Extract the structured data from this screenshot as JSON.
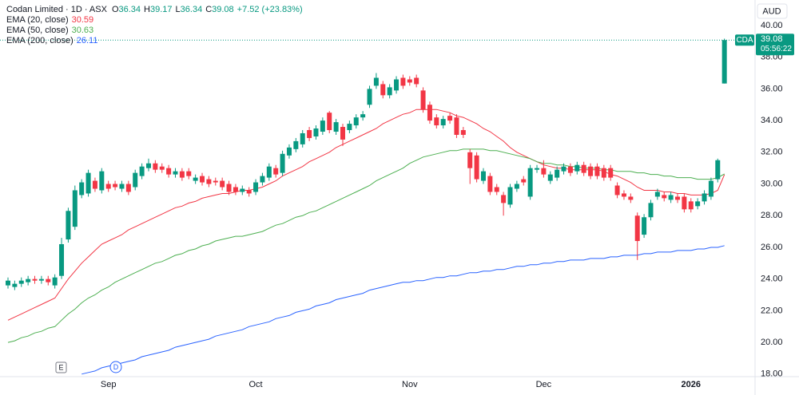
{
  "chart_data": {
    "type": "candlestick",
    "title": "Codan Limited · 1D · ASX",
    "symbol": "CDA",
    "currency": "AUD",
    "countdown": "05:56:22",
    "ohlc_labels": [
      "O",
      "H",
      "L",
      "C"
    ],
    "change": "+7.52 (+23.83%)",
    "events": [
      "E",
      "D"
    ],
    "up_color": "#089981",
    "down_color": "#f23645",
    "ylim": [
      17.84,
      41.61
    ],
    "yticks": [
      {
        "value": 18,
        "label": "18.00"
      },
      {
        "value": 20,
        "label": "20.00"
      },
      {
        "value": 22,
        "label": "22.00"
      },
      {
        "value": 24,
        "label": "24.00"
      },
      {
        "value": 26,
        "label": "26.00"
      },
      {
        "value": 28,
        "label": "28.00"
      },
      {
        "value": 30,
        "label": "30.00"
      },
      {
        "value": 32,
        "label": "32.00"
      },
      {
        "value": 34,
        "label": "34.00"
      },
      {
        "value": 36,
        "label": "36.00"
      },
      {
        "value": 38,
        "label": "38.00"
      },
      {
        "value": 40,
        "label": "40.00"
      }
    ],
    "grid": false,
    "categories": [
      null,
      null,
      null,
      null,
      null,
      null,
      null,
      null,
      null,
      null,
      null,
      null,
      null,
      null,
      null,
      "Sep",
      null,
      null,
      null,
      null,
      null,
      null,
      null,
      null,
      null,
      null,
      null,
      null,
      null,
      null,
      null,
      null,
      null,
      null,
      null,
      null,
      null,
      "Oct",
      null,
      null,
      null,
      null,
      null,
      null,
      null,
      null,
      null,
      null,
      null,
      null,
      null,
      null,
      null,
      null,
      null,
      null,
      null,
      null,
      null,
      null,
      "Nov",
      null,
      null,
      null,
      null,
      null,
      null,
      null,
      null,
      null,
      null,
      null,
      null,
      null,
      null,
      null,
      null,
      null,
      null,
      null,
      "Dec",
      null,
      null,
      null,
      null,
      null,
      null,
      null,
      null,
      null,
      null,
      null,
      null,
      null,
      null,
      null,
      null,
      null,
      null,
      null,
      null,
      null,
      "2026",
      null,
      null,
      null,
      null,
      null
    ],
    "open": [
      23.6,
      23.5,
      23.7,
      23.8,
      24.0,
      23.9,
      24.0,
      23.6,
      24.2,
      26.5,
      27.3,
      29.3,
      29.4,
      30.2,
      29.6,
      30.0,
      30.0,
      29.7,
      30.0,
      29.8,
      30.5,
      31.0,
      31.3,
      31.1,
      31.0,
      30.6,
      30.8,
      30.8,
      30.2,
      30.5,
      30.3,
      30.2,
      30.2,
      30.0,
      29.8,
      29.5,
      29.6,
      29.5,
      30.1,
      30.4,
      31.0,
      30.7,
      31.8,
      32.2,
      32.5,
      33.4,
      33.0,
      33.3,
      34.5,
      33.3,
      33.6,
      33.4,
      33.7,
      34.2,
      35.0,
      36.2,
      36.3,
      35.6,
      35.9,
      36.7,
      36.6,
      36.7,
      35.9,
      35.0,
      34.2,
      33.7,
      34.3,
      34.2,
      33.4,
      32.0,
      31.8,
      30.2,
      30.5,
      29.8,
      29.3,
      28.7,
      29.7,
      30.3,
      29.2,
      30.9,
      31.0,
      30.2,
      30.4,
      30.8,
      31.1,
      30.8,
      31.2,
      31.1,
      31.1,
      31.0,
      31.0,
      29.9,
      29.4,
      29.2,
      28.0,
      26.8,
      27.9,
      29.2,
      29.3,
      29.0,
      29.2,
      29.2,
      28.9,
      28.6,
      28.9,
      29.2,
      30.3,
      36.34
    ],
    "high": [
      24.1,
      23.9,
      24.1,
      24.2,
      24.2,
      24.2,
      24.2,
      24.3,
      26.6,
      28.5,
      29.9,
      30.3,
      30.9,
      30.4,
      31.0,
      30.2,
      30.2,
      30.2,
      30.2,
      30.9,
      31.3,
      31.6,
      31.5,
      31.3,
      31.2,
      31.0,
      31.0,
      31.0,
      30.6,
      30.7,
      30.5,
      30.4,
      30.4,
      30.2,
      30.0,
      29.9,
      29.8,
      30.3,
      30.7,
      31.3,
      31.2,
      32.1,
      32.5,
      32.9,
      33.4,
      33.6,
      33.7,
      34.2,
      34.6,
      34.1,
      33.8,
      34.0,
      34.4,
      34.6,
      36.2,
      37.0,
      36.5,
      36.3,
      36.8,
      36.9,
      36.8,
      36.9,
      36.1,
      35.2,
      34.4,
      34.3,
      34.5,
      34.4,
      33.6,
      32.2,
      32.0,
      31.0,
      30.7,
      30.0,
      29.5,
      30.0,
      30.2,
      30.5,
      31.2,
      31.2,
      31.5,
      30.8,
      31.1,
      31.3,
      31.3,
      31.4,
      31.4,
      31.3,
      31.3,
      31.2,
      31.2,
      30.1,
      29.6,
      29.4,
      28.2,
      28.1,
      29.0,
      29.7,
      29.5,
      29.5,
      29.4,
      29.4,
      29.1,
      29.1,
      29.6,
      30.4,
      31.6,
      39.17
    ],
    "low": [
      23.4,
      23.3,
      23.5,
      23.6,
      23.7,
      23.7,
      23.6,
      23.4,
      24.0,
      26.3,
      27.1,
      29.1,
      29.2,
      29.5,
      29.4,
      29.5,
      29.6,
      29.5,
      29.3,
      29.6,
      30.3,
      30.8,
      30.7,
      30.7,
      30.4,
      30.4,
      30.2,
      30.3,
      30.0,
      29.9,
      29.8,
      29.9,
      29.6,
      29.3,
      29.3,
      29.3,
      29.2,
      29.3,
      29.9,
      30.2,
      30.4,
      30.5,
      31.6,
      32.0,
      32.3,
      32.7,
      32.8,
      33.1,
      33.2,
      33.1,
      32.4,
      33.2,
      33.5,
      34.0,
      34.8,
      36.0,
      35.4,
      35.4,
      35.7,
      36.0,
      36.2,
      36.1,
      34.5,
      33.8,
      33.5,
      33.5,
      33.8,
      32.9,
      32.9,
      30.0,
      30.1,
      30.0,
      29.3,
      29.3,
      28.0,
      28.5,
      29.5,
      29.9,
      29.0,
      30.7,
      30.4,
      30.0,
      30.2,
      30.6,
      30.5,
      30.6,
      30.5,
      30.3,
      30.3,
      30.2,
      30.2,
      29.1,
      29.0,
      28.8,
      25.2,
      26.6,
      27.7,
      29.0,
      28.9,
      28.8,
      28.8,
      28.2,
      28.2,
      28.4,
      28.7,
      29.0,
      30.1,
      36.34
    ],
    "close": [
      23.9,
      23.7,
      23.9,
      24.0,
      23.9,
      24.0,
      23.8,
      24.1,
      26.2,
      28.3,
      29.6,
      30.1,
      30.7,
      29.7,
      30.8,
      29.7,
      29.8,
      30.0,
      29.5,
      30.7,
      31.1,
      31.3,
      30.9,
      30.9,
      30.6,
      30.8,
      30.4,
      30.5,
      30.4,
      30.1,
      30.0,
      30.1,
      29.8,
      29.5,
      29.5,
      29.7,
      29.4,
      30.1,
      30.5,
      31.1,
      30.6,
      31.9,
      32.3,
      32.7,
      33.2,
      32.9,
      33.5,
      34.0,
      33.4,
      33.9,
      32.8,
      33.8,
      34.2,
      34.4,
      36.0,
      36.7,
      35.6,
      36.1,
      36.6,
      36.2,
      36.4,
      36.3,
      34.7,
      34.0,
      33.7,
      34.1,
      34.0,
      33.1,
      33.1,
      31.0,
      30.3,
      30.8,
      29.5,
      29.5,
      28.8,
      29.8,
      30.0,
      30.1,
      31.0,
      31.0,
      30.6,
      30.6,
      30.9,
      31.1,
      30.7,
      31.2,
      30.7,
      30.5,
      30.5,
      30.4,
      30.4,
      29.3,
      29.2,
      29.0,
      26.4,
      27.9,
      28.8,
      29.5,
      29.1,
      29.3,
      29.0,
      28.4,
      28.4,
      28.9,
      29.4,
      30.2,
      31.5,
      39.08
    ],
    "series": [
      {
        "name": "EMA (20, close)",
        "color": "#f23645",
        "values": [
          21.4,
          21.6,
          21.8,
          22.0,
          22.2,
          22.4,
          22.6,
          22.8,
          23.4,
          24.0,
          24.5,
          25.0,
          25.4,
          25.8,
          26.2,
          26.4,
          26.6,
          26.8,
          27.1,
          27.3,
          27.5,
          27.7,
          27.9,
          28.1,
          28.3,
          28.5,
          28.6,
          28.8,
          28.9,
          29.1,
          29.2,
          29.3,
          29.4,
          29.4,
          29.5,
          29.6,
          29.6,
          29.7,
          29.8,
          30.0,
          30.2,
          30.5,
          30.7,
          30.9,
          31.1,
          31.4,
          31.6,
          31.8,
          32.0,
          32.3,
          32.5,
          32.7,
          32.9,
          33.1,
          33.3,
          33.5,
          33.8,
          34.0,
          34.2,
          34.4,
          34.5,
          34.7,
          34.7,
          34.7,
          34.7,
          34.6,
          34.5,
          34.3,
          34.2,
          34.0,
          33.8,
          33.5,
          33.3,
          33.0,
          32.7,
          32.3,
          32.0,
          31.8,
          31.6,
          31.4,
          31.2,
          31.1,
          31.0,
          31.0,
          30.9,
          30.9,
          30.9,
          30.9,
          30.9,
          30.8,
          30.6,
          30.5,
          30.3,
          30.1,
          29.8,
          29.6,
          29.6,
          29.6,
          29.5,
          29.5,
          29.4,
          29.4,
          29.3,
          29.3,
          29.3,
          29.4,
          29.6,
          30.59
        ]
      },
      {
        "name": "EMA (50, close)",
        "color": "#4caf50",
        "values": [
          20.0,
          20.1,
          20.3,
          20.4,
          20.6,
          20.7,
          20.9,
          21.0,
          21.4,
          21.8,
          22.1,
          22.5,
          22.8,
          23.0,
          23.3,
          23.5,
          23.8,
          24.0,
          24.2,
          24.4,
          24.6,
          24.8,
          25.0,
          25.1,
          25.3,
          25.5,
          25.6,
          25.8,
          25.9,
          26.1,
          26.2,
          26.4,
          26.5,
          26.6,
          26.7,
          26.7,
          26.8,
          26.9,
          27.0,
          27.2,
          27.4,
          27.5,
          27.7,
          27.9,
          28.0,
          28.2,
          28.3,
          28.5,
          28.7,
          28.9,
          29.1,
          29.3,
          29.5,
          29.7,
          29.9,
          30.2,
          30.4,
          30.6,
          30.8,
          31.0,
          31.3,
          31.5,
          31.7,
          31.8,
          31.9,
          32.0,
          32.1,
          32.1,
          32.2,
          32.2,
          32.2,
          32.2,
          32.1,
          32.1,
          32.0,
          31.9,
          31.8,
          31.7,
          31.6,
          31.4,
          31.3,
          31.3,
          31.2,
          31.2,
          31.1,
          31.1,
          31.0,
          31.0,
          31.0,
          30.9,
          30.9,
          30.8,
          30.8,
          30.8,
          30.7,
          30.7,
          30.6,
          30.6,
          30.5,
          30.5,
          30.4,
          30.4,
          30.4,
          30.3,
          30.3,
          30.3,
          30.4,
          30.63
        ]
      },
      {
        "name": "EMA (200, close)",
        "color": "#2962ff",
        "values": [
          null,
          null,
          null,
          null,
          null,
          null,
          null,
          null,
          null,
          null,
          null,
          18.0,
          18.1,
          18.2,
          18.4,
          18.5,
          18.6,
          18.7,
          18.8,
          18.9,
          19.1,
          19.2,
          19.3,
          19.4,
          19.5,
          19.7,
          19.8,
          19.9,
          20.0,
          20.1,
          20.2,
          20.4,
          20.5,
          20.6,
          20.7,
          20.8,
          21.0,
          21.1,
          21.2,
          21.3,
          21.5,
          21.6,
          21.7,
          21.9,
          22.0,
          22.1,
          22.3,
          22.4,
          22.5,
          22.7,
          22.8,
          22.9,
          23.0,
          23.1,
          23.3,
          23.4,
          23.5,
          23.6,
          23.7,
          23.8,
          23.8,
          23.9,
          23.9,
          24.0,
          24.1,
          24.1,
          24.2,
          24.2,
          24.3,
          24.4,
          24.4,
          24.5,
          24.5,
          24.6,
          24.6,
          24.7,
          24.8,
          24.8,
          24.9,
          24.9,
          25.0,
          25.0,
          25.1,
          25.1,
          25.2,
          25.2,
          25.2,
          25.3,
          25.3,
          25.3,
          25.4,
          25.4,
          25.5,
          25.5,
          25.5,
          25.6,
          25.6,
          25.7,
          25.7,
          25.7,
          25.8,
          25.8,
          25.8,
          25.9,
          25.9,
          26.0,
          26.0,
          26.11
        ]
      }
    ]
  }
}
